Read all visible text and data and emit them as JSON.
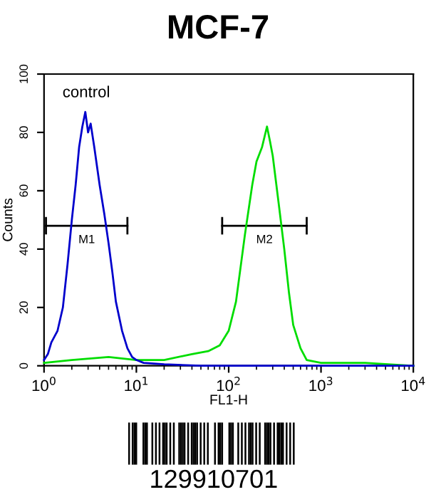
{
  "chart_data": {
    "type": "line",
    "title": "MCF-7",
    "xlabel": "FL1-H",
    "ylabel": "Counts",
    "log": "x",
    "xlim": [
      1,
      10000
    ],
    "xticks": [
      {
        "value": 1,
        "label": "10$^{0}$"
      },
      {
        "value": 10,
        "label": "10$^{1}$"
      },
      {
        "value": 100,
        "label": "10$^{2}$"
      },
      {
        "value": 1000,
        "label": "10$^{3}$"
      },
      {
        "value": 10000,
        "label": "10$^{4}$"
      }
    ],
    "ylim": [
      0,
      100
    ],
    "yticks": [
      0,
      20,
      40,
      60,
      80,
      100
    ],
    "grid": false,
    "legend": false,
    "series": [
      {
        "name": "control",
        "color": "#0000cc",
        "marker": "none",
        "x": [
          1.0,
          1.1,
          1.2,
          1.4,
          1.6,
          1.8,
          2.0,
          2.2,
          2.4,
          2.6,
          2.8,
          3.0,
          3.2,
          3.5,
          4.0,
          4.5,
          5.0,
          5.5,
          6.0,
          7.0,
          8.0,
          9.0,
          10,
          12,
          20,
          50,
          100,
          1000,
          10000
        ],
        "values": [
          2,
          4,
          8,
          12,
          20,
          35,
          50,
          62,
          75,
          82,
          87,
          80,
          83,
          75,
          62,
          52,
          42,
          32,
          22,
          12,
          6,
          3,
          2,
          1,
          0.5,
          0,
          0,
          0,
          0
        ]
      },
      {
        "color": "#00dd00",
        "marker": "none",
        "x": [
          1,
          2,
          5,
          10,
          20,
          40,
          60,
          80,
          100,
          120,
          150,
          180,
          200,
          230,
          260,
          280,
          300,
          350,
          400,
          450,
          500,
          600,
          700,
          1000,
          3000,
          10000
        ],
        "values": [
          1,
          2,
          3,
          2,
          2,
          4,
          5,
          7,
          12,
          22,
          45,
          62,
          70,
          75,
          82,
          77,
          72,
          55,
          40,
          25,
          14,
          6,
          2,
          1,
          1,
          0
        ]
      },
      {
        "name": "M1",
        "color": "#000000",
        "marker": "none",
        "x": [
          1.05,
          8
        ],
        "values": [
          48,
          48
        ],
        "errors": [
          3,
          3
        ]
      },
      {
        "name": "M2",
        "color": "#000000",
        "marker": "none",
        "x": [
          85,
          700
        ],
        "values": [
          48,
          48
        ],
        "errors": [
          3,
          3
        ]
      }
    ],
    "annotations": [
      "129910701"
    ]
  }
}
